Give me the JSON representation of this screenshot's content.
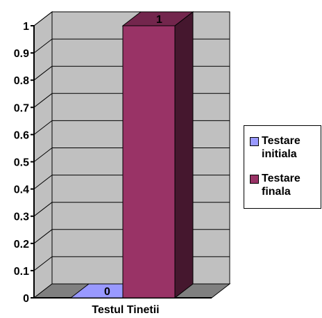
{
  "chart_data": {
    "type": "bar",
    "categories": [
      "Testul Tinetii"
    ],
    "series": [
      {
        "name": "Testare initiala",
        "values": [
          0
        ],
        "color": "#9999FF"
      },
      {
        "name": "Testare finala",
        "values": [
          1
        ],
        "color": "#993366"
      }
    ],
    "ylim": [
      0,
      1
    ],
    "y_ticks": [
      "0",
      "0.1",
      "0.2",
      "0.3",
      "0.4",
      "0.5",
      "0.6",
      "0.7",
      "0.8",
      "0.9",
      "1"
    ],
    "data_labels": [
      "0",
      "1"
    ],
    "grid": true,
    "legend_position": "right",
    "wall_color": "#C0C0C0",
    "floor_color": "#808080"
  }
}
